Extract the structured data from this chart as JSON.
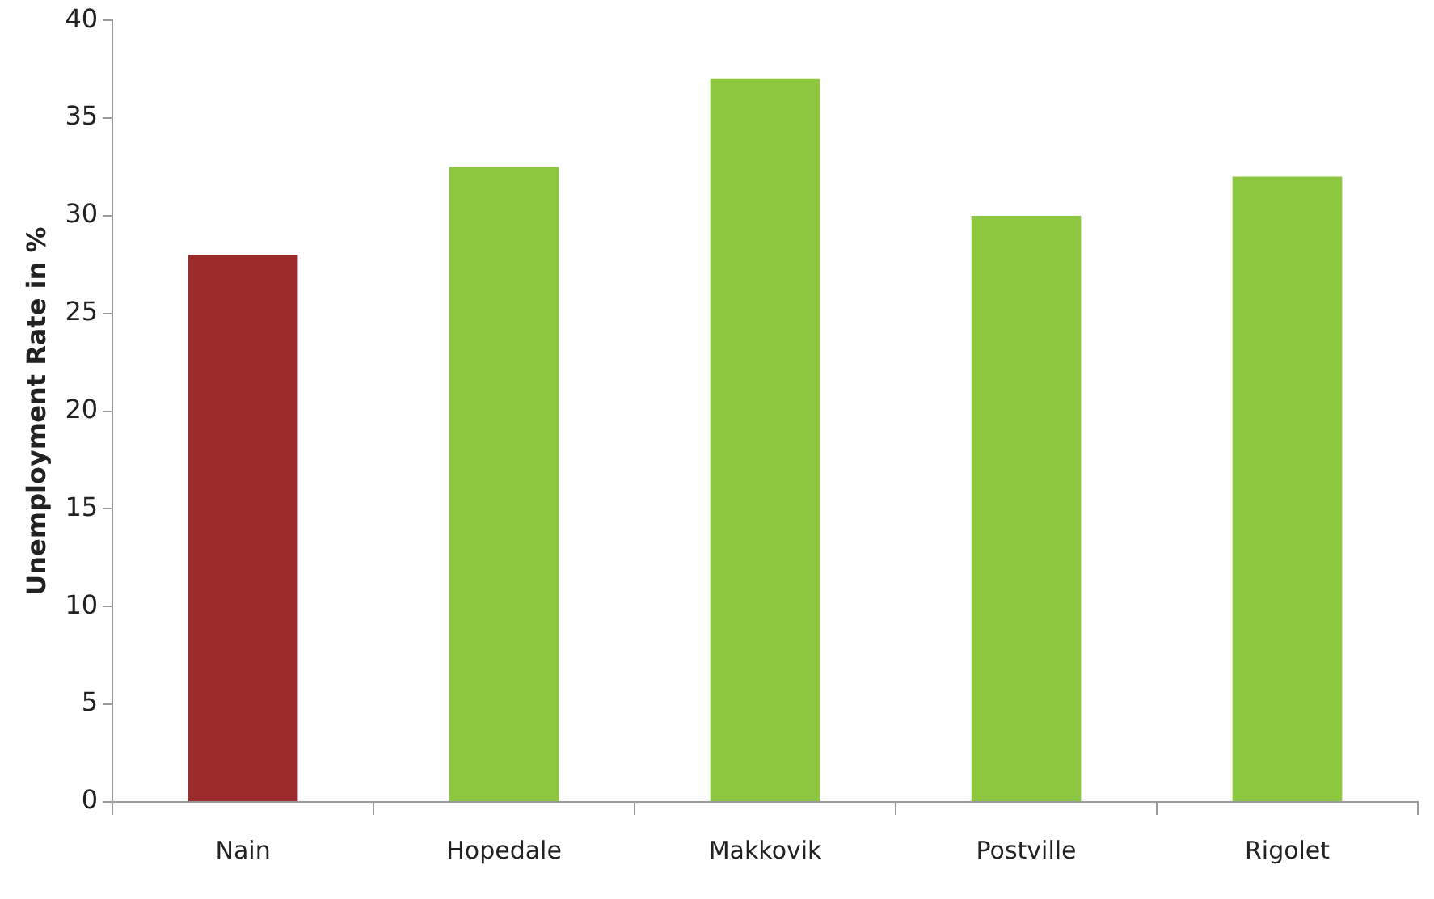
{
  "chart_data": {
    "type": "bar",
    "ylabel": "Unemployment Rate in %",
    "categories": [
      "Nain",
      "Hopedale",
      "Makkovik",
      "Postville",
      "Rigolet"
    ],
    "values": [
      28,
      32.5,
      37,
      30,
      32
    ],
    "colors": [
      "#9e2b2b",
      "#8dc63f",
      "#8dc63f",
      "#8dc63f",
      "#8dc63f"
    ],
    "ylim": [
      0,
      40
    ],
    "yticks": [
      0,
      5,
      10,
      15,
      20,
      25,
      30,
      35,
      40
    ],
    "grid": false,
    "legend": false
  }
}
